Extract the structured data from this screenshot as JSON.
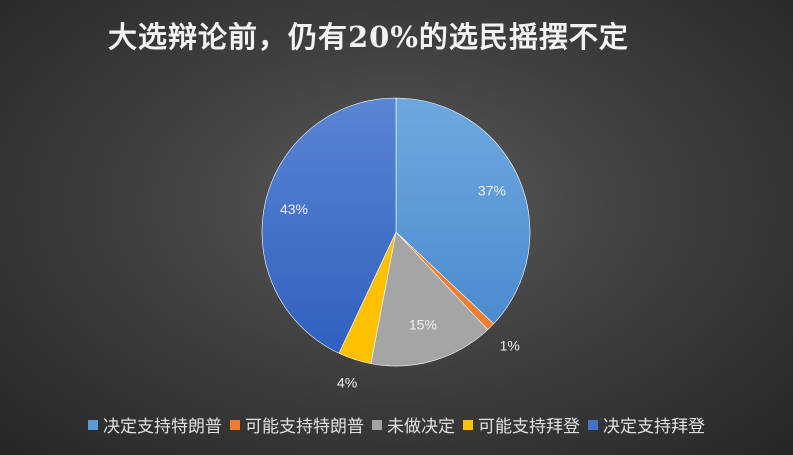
{
  "chart_data": {
    "type": "pie",
    "title": "大选辩论前，仍有20%的选民摇摆不定",
    "categories": [
      "决定支持特朗普",
      "可能支持特朗普",
      "未做决定",
      "可能支持拜登",
      "决定支持拜登"
    ],
    "values": [
      37,
      1,
      15,
      4,
      43
    ],
    "labels": [
      "37%",
      "1%",
      "15%",
      "4%",
      "43%"
    ],
    "colors": [
      "#5b9bd5",
      "#ed7d31",
      "#a5a5a5",
      "#ffc000",
      "#4472c4"
    ],
    "legend_position": "bottom"
  }
}
